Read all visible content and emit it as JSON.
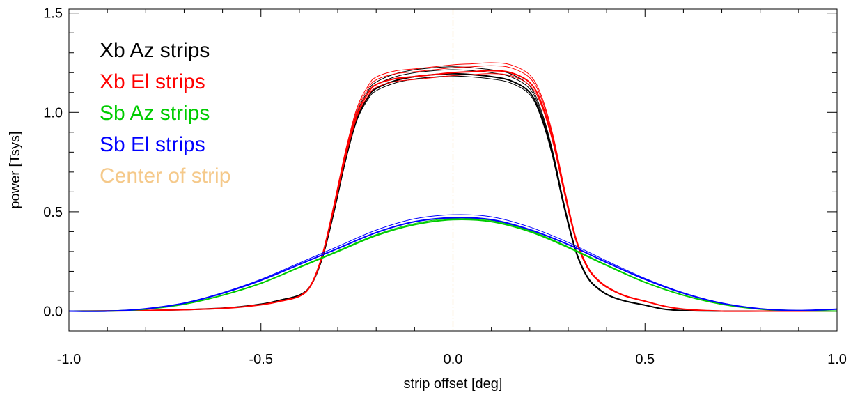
{
  "chart_data": {
    "type": "line",
    "title": "",
    "xlabel": "strip offset [deg]",
    "ylabel": "power [Tsys]",
    "xlim": [
      -1.0,
      1.0
    ],
    "ylim": [
      -0.1,
      1.52
    ],
    "x_ticks": [
      {
        "value": -1.0,
        "label": "-1.0"
      },
      {
        "value": -0.5,
        "label": "-0.5"
      },
      {
        "value": 0.0,
        "label": "0.0"
      },
      {
        "value": 0.5,
        "label": "0.5"
      },
      {
        "value": 1.0,
        "label": "1.0"
      }
    ],
    "y_ticks": [
      {
        "value": 0.0,
        "label": "0.0"
      },
      {
        "value": 0.5,
        "label": "0.5"
      },
      {
        "value": 1.0,
        "label": "1.0"
      },
      {
        "value": 1.5,
        "label": "1.5"
      }
    ],
    "x_minor_step": 0.1,
    "y_minor_step": 0.1,
    "grid": false,
    "legend_position": "top-left",
    "center_line": {
      "x": 0.0,
      "color": "#F5C98A",
      "style": "dash-dot"
    },
    "series": [
      {
        "name": "Xb Az strips",
        "color": "#000000",
        "x": [
          -1.0,
          -0.8,
          -0.6,
          -0.5,
          -0.45,
          -0.4,
          -0.37,
          -0.34,
          -0.31,
          -0.28,
          -0.25,
          -0.22,
          -0.2,
          -0.15,
          -0.1,
          -0.05,
          0.0,
          0.05,
          0.1,
          0.15,
          0.2,
          0.23,
          0.26,
          0.29,
          0.32,
          0.35,
          0.38,
          0.41,
          0.45,
          0.5,
          0.55,
          0.6,
          0.7,
          0.8,
          1.0
        ],
        "values": [
          0.0,
          0.003,
          0.015,
          0.035,
          0.055,
          0.08,
          0.13,
          0.27,
          0.5,
          0.76,
          0.97,
          1.08,
          1.12,
          1.16,
          1.18,
          1.19,
          1.195,
          1.19,
          1.18,
          1.16,
          1.1,
          0.98,
          0.78,
          0.52,
          0.3,
          0.17,
          0.11,
          0.075,
          0.05,
          0.03,
          0.01,
          0.003,
          0.0,
          0.0,
          0.0
        ],
        "variants": [
          0.0,
          0.02,
          -0.012,
          0.035
        ]
      },
      {
        "name": "Xb El strips",
        "color": "#FF0000",
        "x": [
          -1.0,
          -0.8,
          -0.6,
          -0.5,
          -0.45,
          -0.4,
          -0.37,
          -0.34,
          -0.31,
          -0.28,
          -0.25,
          -0.22,
          -0.2,
          -0.15,
          -0.1,
          -0.05,
          0.0,
          0.05,
          0.1,
          0.15,
          0.2,
          0.23,
          0.26,
          0.29,
          0.32,
          0.35,
          0.38,
          0.41,
          0.45,
          0.5,
          0.55,
          0.6,
          0.7,
          0.8,
          1.0
        ],
        "values": [
          0.0,
          0.003,
          0.014,
          0.032,
          0.05,
          0.075,
          0.13,
          0.28,
          0.52,
          0.78,
          0.99,
          1.1,
          1.14,
          1.17,
          1.18,
          1.19,
          1.2,
          1.205,
          1.21,
          1.2,
          1.15,
          1.05,
          0.86,
          0.6,
          0.36,
          0.22,
          0.15,
          0.11,
          0.075,
          0.05,
          0.025,
          0.01,
          0.0,
          0.0,
          0.0
        ],
        "variants": [
          0.0,
          0.025,
          -0.015,
          0.04
        ]
      },
      {
        "name": "Sb Az strips",
        "color": "#00CC00",
        "x": [
          -1.0,
          -0.9,
          -0.8,
          -0.7,
          -0.6,
          -0.5,
          -0.4,
          -0.3,
          -0.2,
          -0.1,
          0.0,
          0.1,
          0.2,
          0.3,
          0.4,
          0.5,
          0.6,
          0.7,
          0.8,
          0.9,
          1.0
        ],
        "values": [
          0.0,
          0.0,
          0.01,
          0.035,
          0.08,
          0.14,
          0.22,
          0.3,
          0.38,
          0.435,
          0.46,
          0.45,
          0.4,
          0.32,
          0.23,
          0.145,
          0.08,
          0.035,
          0.01,
          0.002,
          0.0
        ],
        "variants": [
          0.0,
          0.006
        ]
      },
      {
        "name": "Sb El strips",
        "color": "#0000FF",
        "x": [
          -1.0,
          -0.9,
          -0.8,
          -0.7,
          -0.6,
          -0.5,
          -0.4,
          -0.3,
          -0.2,
          -0.1,
          0.0,
          0.1,
          0.2,
          0.3,
          0.4,
          0.5,
          0.6,
          0.7,
          0.8,
          0.9,
          1.0
        ],
        "values": [
          0.0,
          0.0,
          0.012,
          0.04,
          0.09,
          0.155,
          0.235,
          0.315,
          0.395,
          0.45,
          0.47,
          0.46,
          0.41,
          0.335,
          0.245,
          0.16,
          0.09,
          0.04,
          0.012,
          0.003,
          0.01
        ],
        "variants": [
          0.0,
          0.015
        ]
      }
    ],
    "legend": [
      {
        "text": "Xb Az strips",
        "color": "#000000"
      },
      {
        "text": "Xb El strips",
        "color": "#FF0000"
      },
      {
        "text": "Sb Az strips",
        "color": "#00CC00"
      },
      {
        "text": "Sb El strips",
        "color": "#0000FF"
      },
      {
        "text": "Center of strip",
        "color": "#F5C98A"
      }
    ]
  }
}
